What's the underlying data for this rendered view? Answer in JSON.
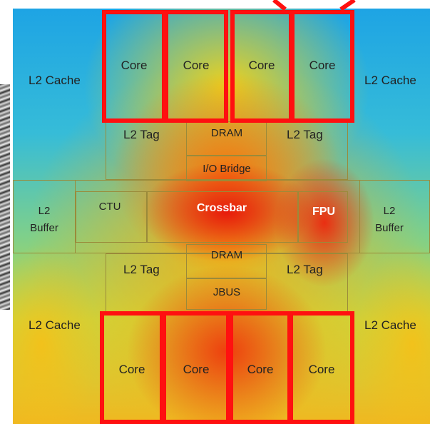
{
  "labels": {
    "l2_cache_tl": "L2 Cache",
    "l2_cache_tr": "L2 Cache",
    "l2_cache_bl": "L2 Cache",
    "l2_cache_br": "L2 Cache",
    "l2_tag_tl": "L2 Tag",
    "l2_tag_tr": "L2 Tag",
    "l2_tag_bl": "L2 Tag",
    "l2_tag_br": "L2 Tag",
    "dram_top": "DRAM",
    "dram_bottom": "DRAM",
    "io_bridge": "I/O Bridge",
    "ctu": "CTU",
    "crossbar": "Crossbar",
    "fpu": "FPU",
    "l2_buffer_left": [
      "L2",
      "Buffer"
    ],
    "l2_buffer_right": [
      "L2",
      "Buffer"
    ],
    "jbus": "JBUS"
  },
  "cores_top": [
    "Core",
    "Core",
    "Core",
    "Core"
  ],
  "cores_bottom": [
    "Core",
    "Core",
    "Core",
    "Core"
  ],
  "colors": {
    "highlight": "#ff1010",
    "cool": "#1ea4e4",
    "hot": "#e8140a"
  }
}
